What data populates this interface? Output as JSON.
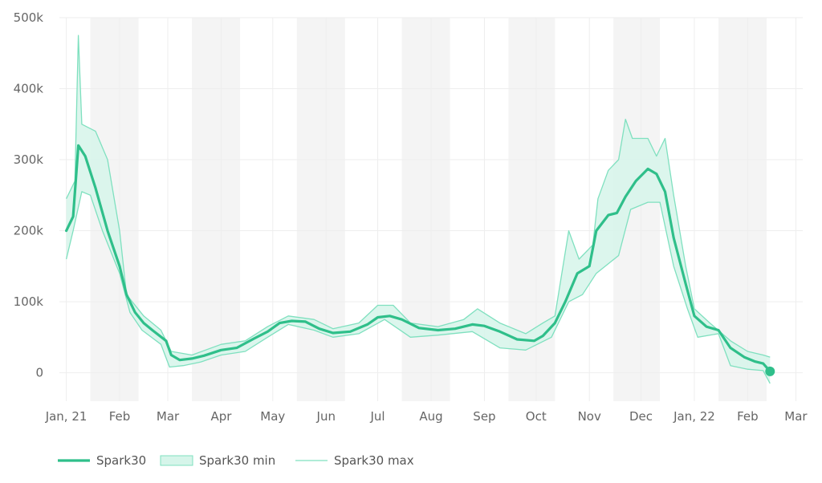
{
  "chart_data": {
    "type": "line",
    "title": "",
    "xlabel": "",
    "ylabel": "",
    "x_ticks": [
      "Jan, 21",
      "Feb",
      "Mar",
      "Apr",
      "May",
      "Jun",
      "Jul",
      "Aug",
      "Sep",
      "Oct",
      "Nov",
      "Dec",
      "Jan, 22",
      "Feb",
      "Mar"
    ],
    "y_ticks": [
      "0",
      "100k",
      "200k",
      "300k",
      "400k",
      "500k"
    ],
    "ylim": [
      -40000,
      500000
    ],
    "xlim": [
      "2020-12-28",
      "2022-03-05"
    ],
    "grid": true,
    "weekend_shading": true,
    "legend_position": "bottom-left",
    "colors": {
      "line": "#2fbf8a",
      "band_fill": "#d6f5ea",
      "band_line": "#7fe0bf",
      "shade": "#f4f4f4",
      "grid": "#eeeeee"
    },
    "legend": [
      {
        "label": "Spark30",
        "style": "line"
      },
      {
        "label": "Spark30 min",
        "style": "band"
      },
      {
        "label": "Spark30 max",
        "style": "thin"
      }
    ],
    "series": [
      {
        "name": "Spark30",
        "points": [
          [
            "2021-01-01",
            200000
          ],
          [
            "2021-01-05",
            220000
          ],
          [
            "2021-01-08",
            320000
          ],
          [
            "2021-01-12",
            305000
          ],
          [
            "2021-01-18",
            260000
          ],
          [
            "2021-01-25",
            200000
          ],
          [
            "2021-02-01",
            150000
          ],
          [
            "2021-02-05",
            110000
          ],
          [
            "2021-02-10",
            85000
          ],
          [
            "2021-02-15",
            70000
          ],
          [
            "2021-02-20",
            60000
          ],
          [
            "2021-02-28",
            45000
          ],
          [
            "2021-03-03",
            25000
          ],
          [
            "2021-03-08",
            18000
          ],
          [
            "2021-03-15",
            20000
          ],
          [
            "2021-03-22",
            24000
          ],
          [
            "2021-04-01",
            32000
          ],
          [
            "2021-04-10",
            35000
          ],
          [
            "2021-04-20",
            48000
          ],
          [
            "2021-04-28",
            58000
          ],
          [
            "2021-05-05",
            70000
          ],
          [
            "2021-05-12",
            73000
          ],
          [
            "2021-05-20",
            72000
          ],
          [
            "2021-05-28",
            62000
          ],
          [
            "2021-06-05",
            56000
          ],
          [
            "2021-06-15",
            58000
          ],
          [
            "2021-06-25",
            68000
          ],
          [
            "2021-07-01",
            78000
          ],
          [
            "2021-07-08",
            80000
          ],
          [
            "2021-07-15",
            75000
          ],
          [
            "2021-07-25",
            63000
          ],
          [
            "2021-08-05",
            60000
          ],
          [
            "2021-08-15",
            62000
          ],
          [
            "2021-08-25",
            68000
          ],
          [
            "2021-09-01",
            66000
          ],
          [
            "2021-09-10",
            58000
          ],
          [
            "2021-09-20",
            47000
          ],
          [
            "2021-09-30",
            45000
          ],
          [
            "2021-10-05",
            52000
          ],
          [
            "2021-10-12",
            70000
          ],
          [
            "2021-10-18",
            100000
          ],
          [
            "2021-10-25",
            140000
          ],
          [
            "2021-11-01",
            150000
          ],
          [
            "2021-11-05",
            200000
          ],
          [
            "2021-11-12",
            222000
          ],
          [
            "2021-11-17",
            225000
          ],
          [
            "2021-11-22",
            248000
          ],
          [
            "2021-11-28",
            270000
          ],
          [
            "2021-12-05",
            287000
          ],
          [
            "2021-12-10",
            280000
          ],
          [
            "2021-12-15",
            255000
          ],
          [
            "2021-12-20",
            190000
          ],
          [
            "2021-12-27",
            125000
          ],
          [
            "2022-01-01",
            80000
          ],
          [
            "2022-01-08",
            65000
          ],
          [
            "2022-01-15",
            60000
          ],
          [
            "2022-01-22",
            35000
          ],
          [
            "2022-01-30",
            22000
          ],
          [
            "2022-02-05",
            16000
          ],
          [
            "2022-02-10",
            13000
          ],
          [
            "2022-02-14",
            2000
          ]
        ]
      },
      {
        "name": "Spark30 min",
        "points": [
          [
            "2021-01-01",
            160000
          ],
          [
            "2021-01-05",
            200000
          ],
          [
            "2021-01-10",
            255000
          ],
          [
            "2021-01-15",
            250000
          ],
          [
            "2021-01-22",
            200000
          ],
          [
            "2021-02-01",
            140000
          ],
          [
            "2021-02-07",
            85000
          ],
          [
            "2021-02-14",
            60000
          ],
          [
            "2021-02-25",
            40000
          ],
          [
            "2021-03-02",
            8000
          ],
          [
            "2021-03-10",
            10000
          ],
          [
            "2021-03-20",
            15000
          ],
          [
            "2021-04-01",
            25000
          ],
          [
            "2021-04-15",
            30000
          ],
          [
            "2021-04-28",
            50000
          ],
          [
            "2021-05-10",
            68000
          ],
          [
            "2021-05-25",
            60000
          ],
          [
            "2021-06-05",
            50000
          ],
          [
            "2021-06-20",
            55000
          ],
          [
            "2021-07-05",
            75000
          ],
          [
            "2021-07-20",
            50000
          ],
          [
            "2021-08-05",
            53000
          ],
          [
            "2021-08-25",
            58000
          ],
          [
            "2021-09-10",
            35000
          ],
          [
            "2021-09-25",
            32000
          ],
          [
            "2021-10-10",
            50000
          ],
          [
            "2021-10-20",
            100000
          ],
          [
            "2021-10-28",
            110000
          ],
          [
            "2021-11-05",
            140000
          ],
          [
            "2021-11-18",
            165000
          ],
          [
            "2021-11-25",
            230000
          ],
          [
            "2021-12-05",
            240000
          ],
          [
            "2021-12-12",
            240000
          ],
          [
            "2021-12-20",
            150000
          ],
          [
            "2021-12-28",
            90000
          ],
          [
            "2022-01-03",
            50000
          ],
          [
            "2022-01-15",
            55000
          ],
          [
            "2022-01-22",
            10000
          ],
          [
            "2022-02-01",
            5000
          ],
          [
            "2022-02-10",
            3000
          ],
          [
            "2022-02-14",
            -15000
          ]
        ]
      },
      {
        "name": "Spark30 max",
        "points": [
          [
            "2021-01-01",
            245000
          ],
          [
            "2021-01-06",
            270000
          ],
          [
            "2021-01-08",
            475000
          ],
          [
            "2021-01-10",
            350000
          ],
          [
            "2021-01-18",
            340000
          ],
          [
            "2021-01-25",
            300000
          ],
          [
            "2021-02-01",
            200000
          ],
          [
            "2021-02-05",
            110000
          ],
          [
            "2021-02-15",
            80000
          ],
          [
            "2021-02-25",
            60000
          ],
          [
            "2021-03-03",
            30000
          ],
          [
            "2021-03-15",
            25000
          ],
          [
            "2021-04-01",
            40000
          ],
          [
            "2021-04-15",
            45000
          ],
          [
            "2021-04-28",
            65000
          ],
          [
            "2021-05-10",
            80000
          ],
          [
            "2021-05-25",
            75000
          ],
          [
            "2021-06-05",
            62000
          ],
          [
            "2021-06-20",
            70000
          ],
          [
            "2021-07-01",
            95000
          ],
          [
            "2021-07-10",
            95000
          ],
          [
            "2021-07-20",
            70000
          ],
          [
            "2021-08-05",
            65000
          ],
          [
            "2021-08-20",
            75000
          ],
          [
            "2021-08-28",
            90000
          ],
          [
            "2021-09-10",
            70000
          ],
          [
            "2021-09-25",
            55000
          ],
          [
            "2021-10-05",
            70000
          ],
          [
            "2021-10-12",
            80000
          ],
          [
            "2021-10-20",
            200000
          ],
          [
            "2021-10-26",
            160000
          ],
          [
            "2021-11-03",
            180000
          ],
          [
            "2021-11-06",
            245000
          ],
          [
            "2021-11-12",
            285000
          ],
          [
            "2021-11-18",
            300000
          ],
          [
            "2021-11-22",
            357000
          ],
          [
            "2021-11-26",
            330000
          ],
          [
            "2021-12-05",
            330000
          ],
          [
            "2021-12-10",
            305000
          ],
          [
            "2021-12-15",
            330000
          ],
          [
            "2021-12-20",
            250000
          ],
          [
            "2021-12-27",
            150000
          ],
          [
            "2022-01-01",
            90000
          ],
          [
            "2022-01-10",
            70000
          ],
          [
            "2022-01-22",
            45000
          ],
          [
            "2022-02-01",
            30000
          ],
          [
            "2022-02-10",
            25000
          ],
          [
            "2022-02-14",
            22000
          ]
        ]
      }
    ],
    "end_marker": {
      "x": "2022-02-14",
      "y": 2000
    }
  }
}
